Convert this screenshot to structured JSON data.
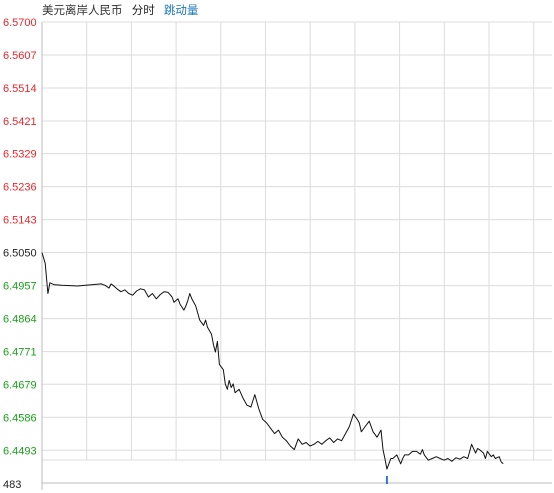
{
  "header": {
    "title": "美元离岸人民币",
    "tab_time": "分时",
    "tab_volume": "跳动量"
  },
  "colors": {
    "above_ref": "#e8262c",
    "below_ref": "#1aa01a",
    "line": "#111111",
    "grid": "#dcdcdc",
    "volume_mark": "#2b78c5"
  },
  "chart_data": {
    "type": "line",
    "title": "",
    "xlabel": "",
    "ylabel": "",
    "reference_value": 6.505,
    "ylim": [
      6.44,
      6.57
    ],
    "yticks": [
      "6.5700",
      "6.5607",
      "6.5514",
      "6.5421",
      "6.5329",
      "6.5236",
      "6.5143",
      "6.5050",
      "6.4957",
      "6.4864",
      "6.4771",
      "6.4679",
      "6.4586",
      "6.4493"
    ],
    "bottom_label": "483",
    "grid": true,
    "x_range": [
      0,
      120
    ],
    "series": [
      {
        "values": [
          [
            0,
            6.505
          ],
          [
            0.8,
            6.502
          ],
          [
            1.5,
            6.4935
          ],
          [
            2,
            6.4965
          ],
          [
            3,
            6.496
          ],
          [
            5,
            6.4958
          ],
          [
            7,
            6.4957
          ],
          [
            9,
            6.4956
          ],
          [
            11,
            6.4958
          ],
          [
            13,
            6.496
          ],
          [
            15,
            6.4962
          ],
          [
            16,
            6.4958
          ],
          [
            17,
            6.495
          ],
          [
            17.5,
            6.4962
          ],
          [
            18,
            6.4958
          ],
          [
            19,
            6.4948
          ],
          [
            20,
            6.494
          ],
          [
            21,
            6.4945
          ],
          [
            22,
            6.4935
          ],
          [
            23,
            6.493
          ],
          [
            24,
            6.4942
          ],
          [
            25,
            6.4948
          ],
          [
            26,
            6.4945
          ],
          [
            27,
            6.4925
          ],
          [
            28,
            6.4935
          ],
          [
            29,
            6.492
          ],
          [
            30,
            6.4932
          ],
          [
            31,
            6.494
          ],
          [
            32,
            6.4938
          ],
          [
            33,
            6.4925
          ],
          [
            33.5,
            6.491
          ],
          [
            34.5,
            6.492
          ],
          [
            35,
            6.4905
          ],
          [
            36,
            6.4888
          ],
          [
            36.5,
            6.49
          ],
          [
            37,
            6.4915
          ],
          [
            37.5,
            6.4935
          ],
          [
            38,
            6.492
          ],
          [
            39,
            6.49
          ],
          [
            40,
            6.486
          ],
          [
            41,
            6.4845
          ],
          [
            41.5,
            6.486
          ],
          [
            42,
            6.484
          ],
          [
            43,
            6.482
          ],
          [
            43.5,
            6.479
          ],
          [
            44,
            6.477
          ],
          [
            44.5,
            6.48
          ],
          [
            45,
            6.4735
          ],
          [
            46,
            6.472
          ],
          [
            46.5,
            6.468
          ],
          [
            47,
            6.4665
          ],
          [
            47.5,
            6.469
          ],
          [
            48,
            6.467
          ],
          [
            48.5,
            6.468
          ],
          [
            49,
            6.4655
          ],
          [
            50,
            6.4665
          ],
          [
            51,
            6.464
          ],
          [
            52,
            6.462
          ],
          [
            53,
            6.4615
          ],
          [
            54,
            6.465
          ],
          [
            55,
            6.461
          ],
          [
            56,
            6.458
          ],
          [
            57,
            6.457
          ],
          [
            58,
            6.4555
          ],
          [
            59,
            6.454
          ],
          [
            60,
            6.455
          ],
          [
            61,
            6.453
          ],
          [
            62,
            6.452
          ],
          [
            63,
            6.4505
          ],
          [
            64,
            6.4495
          ],
          [
            65,
            6.4525
          ],
          [
            66,
            6.451
          ],
          [
            67,
            6.4515
          ],
          [
            68,
            6.4505
          ],
          [
            69,
            6.451
          ],
          [
            70,
            6.4518
          ],
          [
            71,
            6.451
          ],
          [
            72,
            6.452
          ],
          [
            73,
            6.4528
          ],
          [
            74,
            6.4515
          ],
          [
            75,
            6.4525
          ],
          [
            76,
            6.452
          ],
          [
            77,
            6.454
          ],
          [
            78,
            6.456
          ],
          [
            79,
            6.4595
          ],
          [
            80,
            6.458
          ],
          [
            80.5,
            6.457
          ],
          [
            81,
            6.4545
          ],
          [
            82,
            6.456
          ],
          [
            83,
            6.4575
          ],
          [
            84,
            6.4545
          ],
          [
            85,
            6.453
          ],
          [
            86,
            6.455
          ],
          [
            86.5,
            6.4495
          ],
          [
            87,
            6.447
          ],
          [
            87.5,
            6.444
          ],
          [
            88,
            6.4455
          ],
          [
            88.5,
            6.447
          ],
          [
            89,
            6.447
          ],
          [
            90,
            6.448
          ],
          [
            91,
            6.4455
          ],
          [
            91.5,
            6.447
          ],
          [
            92,
            6.448
          ],
          [
            93,
            6.448
          ],
          [
            94,
            6.449
          ],
          [
            95,
            6.449
          ],
          [
            96,
            6.4482
          ],
          [
            96.5,
            6.4495
          ],
          [
            97,
            6.448
          ],
          [
            98,
            6.4465
          ],
          [
            99,
            6.447
          ],
          [
            100,
            6.4475
          ],
          [
            101,
            6.447
          ],
          [
            102,
            6.4465
          ],
          [
            103,
            6.447
          ],
          [
            104,
            6.4462
          ],
          [
            105,
            6.4472
          ],
          [
            106,
            6.4468
          ],
          [
            107,
            6.4475
          ],
          [
            108,
            6.447
          ],
          [
            108.5,
            6.449
          ],
          [
            109,
            6.451
          ],
          [
            110,
            6.4485
          ],
          [
            110.5,
            6.4498
          ],
          [
            111,
            6.4495
          ],
          [
            112,
            6.4485
          ],
          [
            112.5,
            6.447
          ],
          [
            113,
            6.449
          ],
          [
            114,
            6.4475
          ],
          [
            114.5,
            6.448
          ],
          [
            115,
            6.447
          ],
          [
            116,
            6.4475
          ],
          [
            116.5,
            6.446
          ],
          [
            117,
            6.4455
          ]
        ]
      }
    ]
  }
}
